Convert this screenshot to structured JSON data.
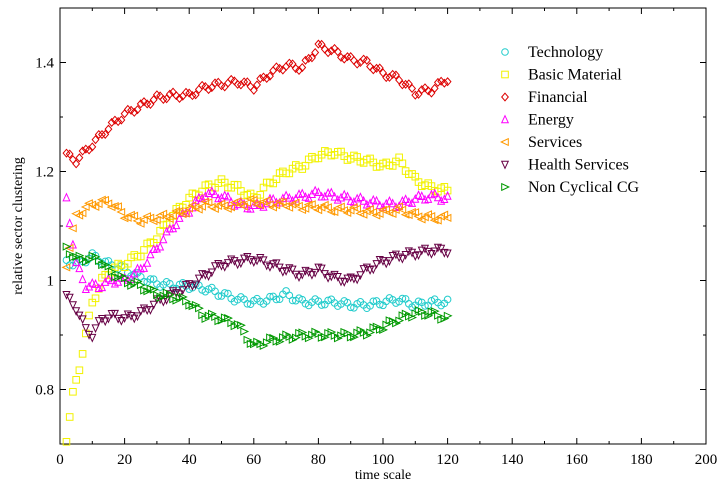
{
  "chart_data": {
    "type": "scatter",
    "xlabel": "time scale",
    "ylabel": "relative sector clustering",
    "xlim": [
      0,
      200
    ],
    "ylim": [
      0.7,
      1.5
    ],
    "x_ticks": [
      0,
      20,
      40,
      60,
      80,
      100,
      120,
      140,
      160,
      180,
      200
    ],
    "y_ticks": [
      0.8,
      1,
      1.2,
      1.4
    ],
    "y_tick_labels": [
      "0.8",
      "1",
      "1.2",
      "1.4"
    ],
    "grid": false,
    "legend_position": "top-right",
    "series": [
      {
        "name": "Technology",
        "color": "#22cccc",
        "marker": "circle",
        "anchors": [
          [
            2,
            1.035
          ],
          [
            5,
            1.03
          ],
          [
            10,
            1.045
          ],
          [
            15,
            1.03
          ],
          [
            20,
            1.02
          ],
          [
            25,
            1.005
          ],
          [
            30,
            0.995
          ],
          [
            35,
            0.99
          ],
          [
            40,
            0.99
          ],
          [
            45,
            0.985
          ],
          [
            50,
            0.975
          ],
          [
            55,
            0.965
          ],
          [
            60,
            0.96
          ],
          [
            65,
            0.965
          ],
          [
            70,
            0.975
          ],
          [
            75,
            0.96
          ],
          [
            80,
            0.96
          ],
          [
            85,
            0.96
          ],
          [
            90,
            0.955
          ],
          [
            95,
            0.955
          ],
          [
            100,
            0.96
          ],
          [
            105,
            0.965
          ],
          [
            110,
            0.955
          ],
          [
            115,
            0.96
          ],
          [
            120,
            0.96
          ]
        ]
      },
      {
        "name": "Basic Material",
        "color": "#f2f200",
        "marker": "square",
        "anchors": [
          [
            2,
            0.71
          ],
          [
            4,
            0.79
          ],
          [
            6,
            0.84
          ],
          [
            8,
            0.9
          ],
          [
            10,
            0.96
          ],
          [
            13,
            1.0
          ],
          [
            16,
            1.02
          ],
          [
            20,
            1.03
          ],
          [
            25,
            1.05
          ],
          [
            30,
            1.08
          ],
          [
            35,
            1.12
          ],
          [
            40,
            1.15
          ],
          [
            45,
            1.17
          ],
          [
            50,
            1.18
          ],
          [
            55,
            1.17
          ],
          [
            60,
            1.15
          ],
          [
            65,
            1.18
          ],
          [
            70,
            1.2
          ],
          [
            75,
            1.21
          ],
          [
            80,
            1.23
          ],
          [
            85,
            1.235
          ],
          [
            90,
            1.225
          ],
          [
            95,
            1.22
          ],
          [
            100,
            1.21
          ],
          [
            105,
            1.22
          ],
          [
            110,
            1.185
          ],
          [
            115,
            1.17
          ],
          [
            120,
            1.165
          ]
        ]
      },
      {
        "name": "Financial",
        "color": "#dd0000",
        "marker": "diamond",
        "anchors": [
          [
            2,
            1.23
          ],
          [
            5,
            1.22
          ],
          [
            10,
            1.25
          ],
          [
            15,
            1.28
          ],
          [
            20,
            1.305
          ],
          [
            25,
            1.32
          ],
          [
            30,
            1.335
          ],
          [
            35,
            1.34
          ],
          [
            40,
            1.34
          ],
          [
            45,
            1.355
          ],
          [
            50,
            1.36
          ],
          [
            55,
            1.365
          ],
          [
            60,
            1.355
          ],
          [
            65,
            1.38
          ],
          [
            70,
            1.395
          ],
          [
            75,
            1.39
          ],
          [
            80,
            1.43
          ],
          [
            85,
            1.42
          ],
          [
            90,
            1.405
          ],
          [
            95,
            1.4
          ],
          [
            100,
            1.38
          ],
          [
            105,
            1.37
          ],
          [
            110,
            1.345
          ],
          [
            115,
            1.35
          ],
          [
            120,
            1.37
          ]
        ]
      },
      {
        "name": "Energy",
        "color": "#ff00ff",
        "marker": "triangle-up",
        "anchors": [
          [
            2,
            1.15
          ],
          [
            5,
            1.03
          ],
          [
            8,
            0.99
          ],
          [
            12,
            0.99
          ],
          [
            16,
            1.0
          ],
          [
            20,
            1.0
          ],
          [
            25,
            1.02
          ],
          [
            30,
            1.06
          ],
          [
            35,
            1.1
          ],
          [
            40,
            1.13
          ],
          [
            45,
            1.16
          ],
          [
            50,
            1.155
          ],
          [
            55,
            1.14
          ],
          [
            60,
            1.135
          ],
          [
            65,
            1.145
          ],
          [
            70,
            1.15
          ],
          [
            75,
            1.155
          ],
          [
            80,
            1.16
          ],
          [
            85,
            1.155
          ],
          [
            90,
            1.15
          ],
          [
            95,
            1.145
          ],
          [
            100,
            1.14
          ],
          [
            105,
            1.14
          ],
          [
            110,
            1.15
          ],
          [
            115,
            1.155
          ],
          [
            120,
            1.15
          ]
        ]
      },
      {
        "name": "Services",
        "color": "#ff9900",
        "marker": "triangle-left",
        "anchors": [
          [
            2,
            1.03
          ],
          [
            5,
            1.12
          ],
          [
            10,
            1.14
          ],
          [
            15,
            1.145
          ],
          [
            20,
            1.12
          ],
          [
            25,
            1.11
          ],
          [
            30,
            1.115
          ],
          [
            35,
            1.12
          ],
          [
            40,
            1.13
          ],
          [
            45,
            1.14
          ],
          [
            50,
            1.135
          ],
          [
            55,
            1.14
          ],
          [
            60,
            1.145
          ],
          [
            65,
            1.14
          ],
          [
            70,
            1.14
          ],
          [
            75,
            1.135
          ],
          [
            80,
            1.135
          ],
          [
            85,
            1.13
          ],
          [
            90,
            1.13
          ],
          [
            95,
            1.125
          ],
          [
            100,
            1.125
          ],
          [
            105,
            1.13
          ],
          [
            110,
            1.12
          ],
          [
            115,
            1.115
          ],
          [
            120,
            1.115
          ]
        ]
      },
      {
        "name": "Health Services",
        "color": "#660044",
        "marker": "triangle-down",
        "anchors": [
          [
            2,
            0.97
          ],
          [
            5,
            0.95
          ],
          [
            8,
            0.91
          ],
          [
            10,
            0.9
          ],
          [
            13,
            0.93
          ],
          [
            17,
            0.935
          ],
          [
            20,
            0.93
          ],
          [
            25,
            0.94
          ],
          [
            30,
            0.96
          ],
          [
            35,
            0.975
          ],
          [
            40,
            0.99
          ],
          [
            45,
            1.01
          ],
          [
            50,
            1.03
          ],
          [
            55,
            1.035
          ],
          [
            60,
            1.04
          ],
          [
            65,
            1.03
          ],
          [
            70,
            1.02
          ],
          [
            75,
            1.01
          ],
          [
            80,
            1.02
          ],
          [
            85,
            1.005
          ],
          [
            90,
            1.0
          ],
          [
            95,
            1.02
          ],
          [
            100,
            1.035
          ],
          [
            105,
            1.045
          ],
          [
            110,
            1.05
          ],
          [
            115,
            1.055
          ],
          [
            120,
            1.055
          ]
        ]
      },
      {
        "name": "Non Cyclical CG",
        "color": "#009900",
        "marker": "triangle-right",
        "anchors": [
          [
            2,
            1.06
          ],
          [
            5,
            1.04
          ],
          [
            8,
            1.04
          ],
          [
            12,
            1.04
          ],
          [
            15,
            1.02
          ],
          [
            20,
            1.0
          ],
          [
            25,
            0.99
          ],
          [
            30,
            0.975
          ],
          [
            35,
            0.97
          ],
          [
            40,
            0.96
          ],
          [
            45,
            0.935
          ],
          [
            50,
            0.93
          ],
          [
            55,
            0.92
          ],
          [
            60,
            0.88
          ],
          [
            65,
            0.89
          ],
          [
            70,
            0.895
          ],
          [
            75,
            0.9
          ],
          [
            80,
            0.9
          ],
          [
            85,
            0.9
          ],
          [
            90,
            0.9
          ],
          [
            95,
            0.905
          ],
          [
            100,
            0.915
          ],
          [
            105,
            0.93
          ],
          [
            110,
            0.94
          ],
          [
            115,
            0.94
          ],
          [
            120,
            0.93
          ]
        ]
      }
    ]
  }
}
